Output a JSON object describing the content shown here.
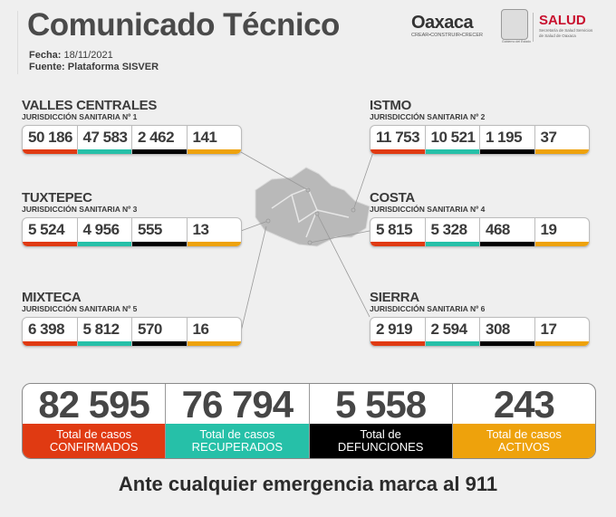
{
  "header": {
    "title": "Comunicado Técnico",
    "date_label": "Fecha:",
    "date": "18/11/2021",
    "source_label": "Fuente:",
    "source": "Plataforma SISVER"
  },
  "logos": {
    "oaxaca": "Oaxaca",
    "oaxaca_tagline": "CREAR•CONSTRUIR•CRECER",
    "gobierno": "Gobierno del Estado",
    "salud": "SALUD",
    "salud_sub": "Secretaría de Salud Servicios de Salud de Oaxaca"
  },
  "colors": {
    "confirmados": "#e03a12",
    "recuperados": "#26c0a8",
    "defunciones": "#000000",
    "activos": "#eea20c"
  },
  "regions": [
    {
      "name": "VALLES CENTRALES",
      "sub": "JURISDICCIÓN SANITARIA Nº 1",
      "values": [
        "50 186",
        "47 583",
        "2 462",
        "141"
      ]
    },
    {
      "name": "ISTMO",
      "sub": "JURISDICCIÓN SANITARIA Nº 2",
      "values": [
        "11 753",
        "10 521",
        "1 195",
        "37"
      ]
    },
    {
      "name": "TUXTEPEC",
      "sub": "JURISDICCIÓN SANITARIA Nº 3",
      "values": [
        "5 524",
        "4 956",
        "555",
        "13"
      ]
    },
    {
      "name": "COSTA",
      "sub": "JURISDICCIÓN SANITARIA Nº 4",
      "values": [
        "5 815",
        "5 328",
        "468",
        "19"
      ]
    },
    {
      "name": "MIXTECA",
      "sub": "JURISDICCIÓN SANITARIA Nº 5",
      "values": [
        "6 398",
        "5 812",
        "570",
        "16"
      ]
    },
    {
      "name": "SIERRA",
      "sub": "JURISDICCIÓN SANITARIA Nº 6",
      "values": [
        "2 919",
        "2 594",
        "308",
        "17"
      ]
    }
  ],
  "totals": [
    {
      "value": "82 595",
      "label1": "Total de casos",
      "label2": "CONFIRMADOS"
    },
    {
      "value": "76 794",
      "label1": "Total de casos",
      "label2": "RECUPERADOS"
    },
    {
      "value": "5 558",
      "label1": "Total de",
      "label2": "DEFUNCIONES"
    },
    {
      "value": "243",
      "label1": "Total de casos",
      "label2": "ACTIVOS"
    }
  ],
  "footer": "Ante cualquier emergencia marca al 911"
}
